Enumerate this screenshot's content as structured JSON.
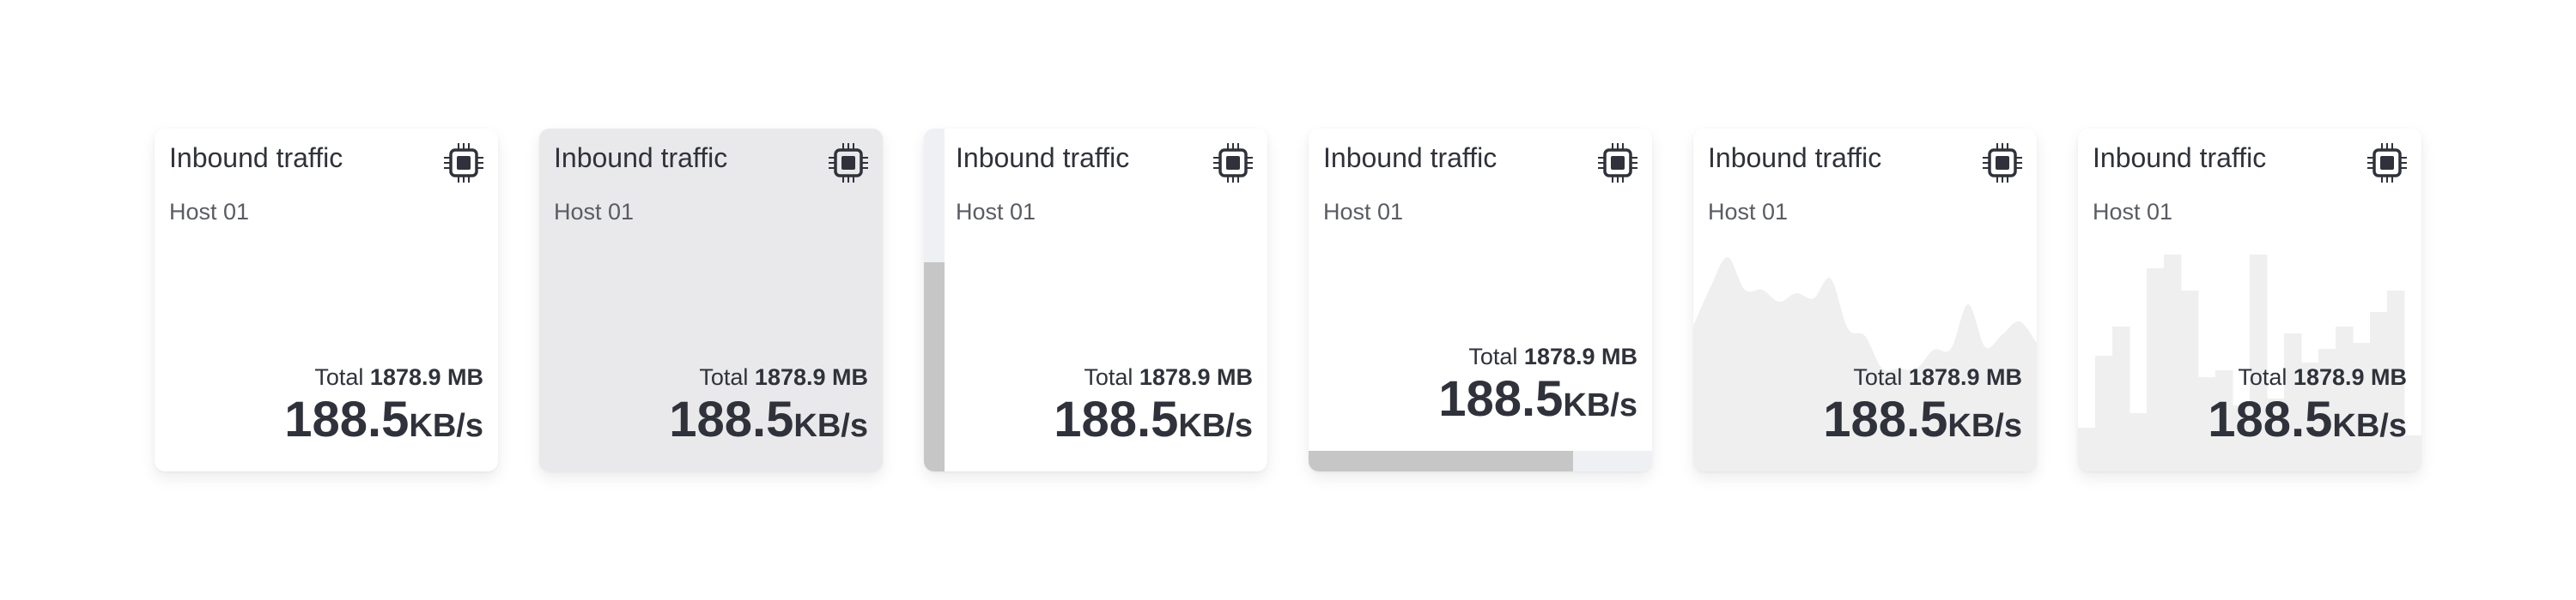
{
  "cards": [
    {
      "variant": "plain",
      "title": "Inbound traffic",
      "host": "Host 01",
      "total_label": "Total",
      "total_value": "1878.9 MB",
      "rate_value": "188.5",
      "rate_unit": "KB/s",
      "icon": "cpu-icon"
    },
    {
      "variant": "gray",
      "title": "Inbound traffic",
      "host": "Host 01",
      "total_label": "Total",
      "total_value": "1878.9 MB",
      "rate_value": "188.5",
      "rate_unit": "KB/s",
      "icon": "cpu-icon"
    },
    {
      "variant": "vertical-progress",
      "progress": 0.61,
      "title": "Inbound traffic",
      "host": "Host 01",
      "total_label": "Total",
      "total_value": "1878.9 MB",
      "rate_value": "188.5",
      "rate_unit": "KB/s",
      "icon": "cpu-icon"
    },
    {
      "variant": "horizontal-progress",
      "progress": 0.77,
      "title": "Inbound traffic",
      "host": "Host 01",
      "total_label": "Total",
      "total_value": "1878.9 MB",
      "rate_value": "188.5",
      "rate_unit": "KB/s",
      "icon": "cpu-icon"
    },
    {
      "variant": "area-sparkline",
      "sparkline": [
        170,
        215,
        250,
        212,
        212,
        198,
        208,
        202,
        225,
        167,
        158,
        120,
        120,
        120,
        142,
        143,
        195,
        145,
        160,
        175,
        150
      ],
      "title": "Inbound traffic",
      "host": "Host 01",
      "total_label": "Total",
      "total_value": "1878.9 MB",
      "rate_value": "188.5",
      "rate_unit": "KB/s",
      "icon": "cpu-icon"
    },
    {
      "variant": "bar-sparkline",
      "sparkline": [
        51,
        135,
        169,
        68,
        237,
        253,
        211,
        110,
        118,
        77,
        253,
        85,
        161,
        127,
        143,
        169,
        150,
        186,
        211,
        42
      ],
      "title": "Inbound traffic",
      "host": "Host 01",
      "total_label": "Total",
      "total_value": "1878.9 MB",
      "rate_value": "188.5",
      "rate_unit": "KB/s",
      "icon": "cpu-icon"
    }
  ],
  "colors": {
    "text": "#30323b",
    "card_gray": "#e9e9eb",
    "progress_fill": "#c6c6c6",
    "progress_track": "#eef0f4",
    "sparkline_fill": "#efefef"
  }
}
